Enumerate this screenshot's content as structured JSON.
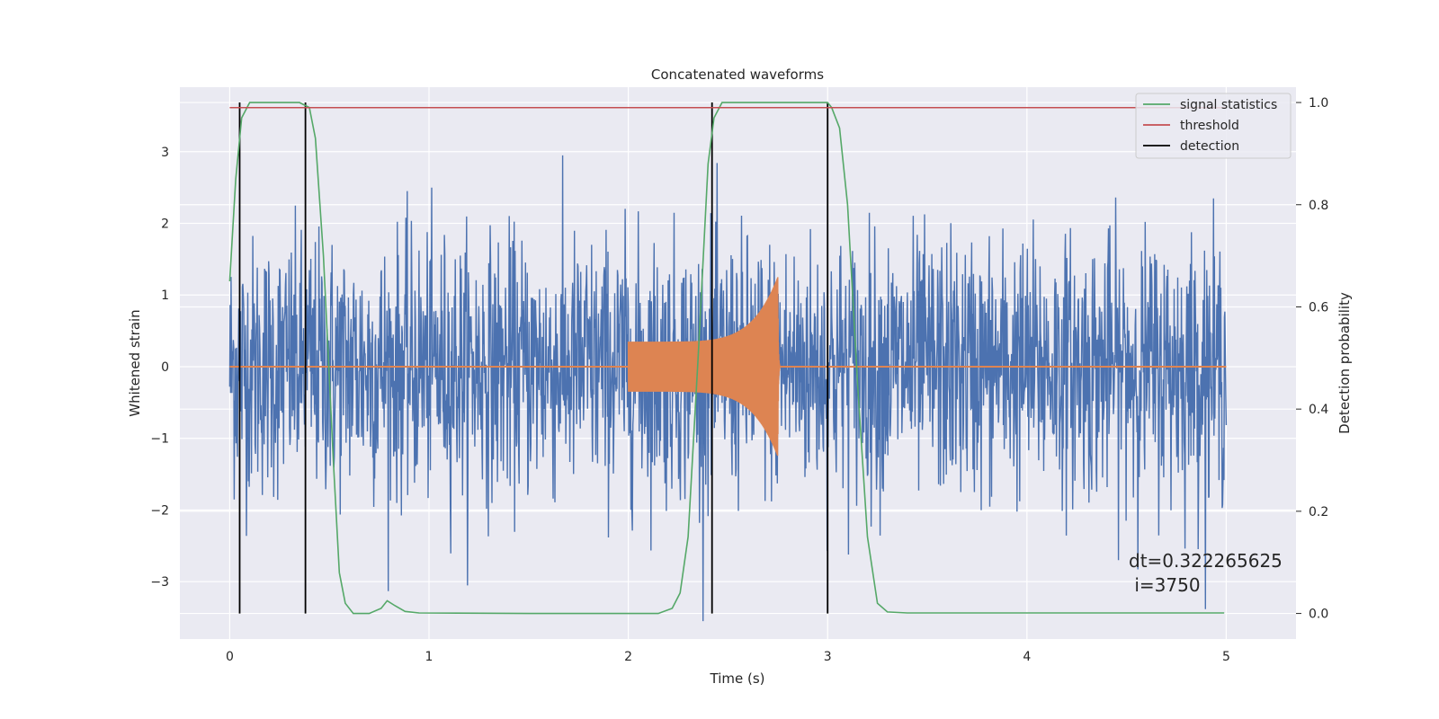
{
  "chart_data": {
    "type": "line",
    "title": "Concatenated waveforms",
    "xlabel": "Time (s)",
    "ylabel": "Whitened strain",
    "ylabel_right": "Detection probability",
    "xlim": [
      -0.25,
      5.35
    ],
    "ylim": [
      -3.8,
      3.9
    ],
    "ylim_right": [
      -0.05,
      1.03
    ],
    "xticks": [
      0,
      1,
      2,
      3,
      4,
      5
    ],
    "yticks": [
      -3,
      -2,
      -1,
      0,
      1,
      2,
      3
    ],
    "yticks_right": [
      0.0,
      0.2,
      0.4,
      0.6,
      0.8,
      1.0
    ],
    "ytick_labels": [
      "−3",
      "−2",
      "−1",
      "0",
      "1",
      "2",
      "3"
    ],
    "ytick_labels_right": [
      "0.0",
      "0.2",
      "0.4",
      "0.6",
      "0.8",
      "1.0"
    ],
    "grid": true,
    "legend_position": "top-right",
    "series": [
      {
        "axis": "left",
        "kind": "noise",
        "color": "#4c72b0",
        "x_range": [
          0,
          5
        ],
        "typical_amplitude": 1.2,
        "peak_amplitude": 3.55
      },
      {
        "axis": "left",
        "kind": "chirp",
        "color": "#dd8452",
        "x_range": [
          2.0,
          2.76
        ],
        "start_amplitude": 0.35,
        "peak_amplitude": 1.25,
        "peak_time": 2.75
      },
      {
        "axis": "right",
        "name": "signal statistics",
        "color": "#55a868",
        "x": [
          0,
          0.03,
          0.06,
          0.1,
          0.15,
          0.35,
          0.4,
          0.43,
          0.47,
          0.52,
          0.55,
          0.58,
          0.62,
          0.7,
          0.76,
          0.79,
          0.83,
          0.88,
          0.95,
          1.5,
          2.15,
          2.22,
          2.26,
          2.3,
          2.35,
          2.4,
          2.43,
          2.47,
          2.55,
          2.95,
          3.0,
          3.02,
          3.06,
          3.1,
          3.15,
          3.2,
          3.25,
          3.3,
          3.4,
          4.0,
          4.99
        ],
        "y": [
          0.65,
          0.85,
          0.97,
          1.0,
          1.0,
          1.0,
          0.99,
          0.93,
          0.7,
          0.3,
          0.08,
          0.02,
          0.0,
          0.0,
          0.01,
          0.025,
          0.015,
          0.004,
          0.001,
          0.0,
          0.0,
          0.01,
          0.04,
          0.15,
          0.5,
          0.88,
          0.97,
          1.0,
          1.0,
          1.0,
          1.0,
          0.99,
          0.95,
          0.8,
          0.45,
          0.15,
          0.02,
          0.003,
          0.001,
          0.001,
          0.001
        ]
      },
      {
        "axis": "right",
        "name": "threshold",
        "color": "#c44e52",
        "x": [
          0,
          5
        ],
        "y": [
          0.99,
          0.99
        ]
      }
    ],
    "detections": {
      "name": "detection",
      "color": "#000000",
      "x": [
        0.05,
        0.38,
        2.42,
        3.0
      ],
      "y_range": [
        0.0,
        1.0
      ]
    },
    "annotation": "dt=0.322265625\n i=3750"
  }
}
